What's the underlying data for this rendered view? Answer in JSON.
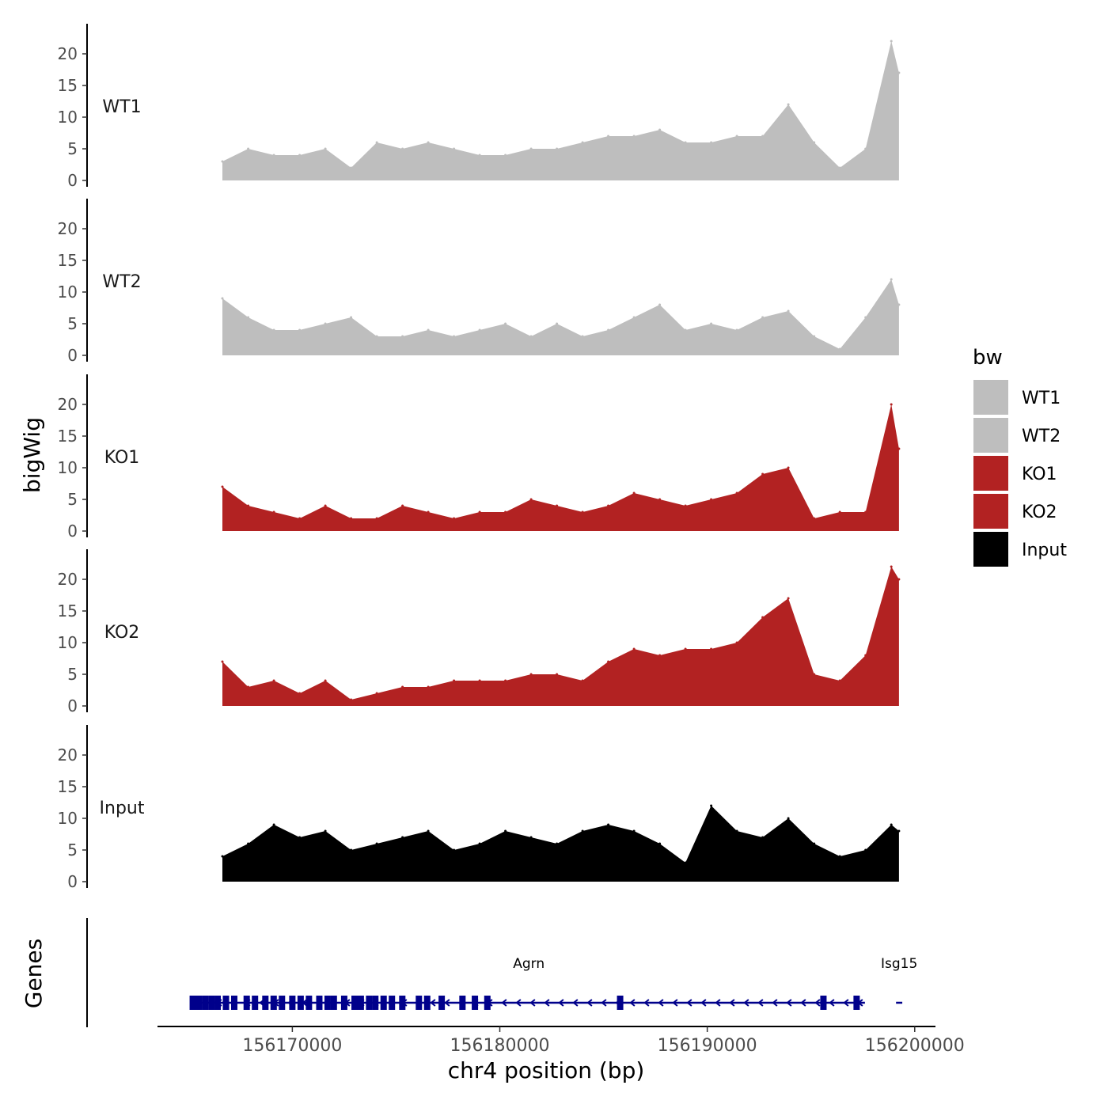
{
  "chart_data": {
    "type": "area",
    "title": "",
    "ylabel": "bigWig",
    "xlabel": "chr4 position (bp)",
    "xlim": [
      156163500,
      156201000
    ],
    "ylim": [
      0,
      25
    ],
    "y_ticks": [
      0,
      5,
      10,
      15,
      20
    ],
    "x_ticks": [
      156170000,
      156180000,
      156190000,
      156200000
    ],
    "x_tick_labels": [
      "156170000",
      "156180000",
      "156190000",
      "156200000"
    ],
    "legend": {
      "title": "bw",
      "placement": "right",
      "entries": [
        {
          "label": "WT1",
          "color": "#BEBEBE"
        },
        {
          "label": "WT2",
          "color": "#BEBEBE"
        },
        {
          "label": "KO1",
          "color": "#B22222"
        },
        {
          "label": "KO2",
          "color": "#B22222"
        },
        {
          "label": "Input",
          "color": "#000000"
        }
      ]
    },
    "series": [
      {
        "name": "WT1",
        "color": "#BEBEBE",
        "x": [
          156166630,
          156167870,
          156169110,
          156170350,
          156171590,
          156172830,
          156174070,
          156175310,
          156176550,
          156177790,
          156179030,
          156180270,
          156181510,
          156182750,
          156183990,
          156185230,
          156186470,
          156187710,
          156188950,
          156190190,
          156191430,
          156192670,
          156193910,
          156195150,
          156196390,
          156197630,
          156198870,
          156199240
        ],
        "values": [
          3,
          5,
          4,
          4,
          5,
          2,
          6,
          5,
          6,
          5,
          4,
          4,
          5,
          5,
          6,
          7,
          7,
          8,
          6,
          6,
          7,
          7,
          12,
          6,
          2,
          5,
          22,
          17
        ]
      },
      {
        "name": "WT2",
        "color": "#BEBEBE",
        "x": [
          156166630,
          156167870,
          156169110,
          156170350,
          156171590,
          156172830,
          156174070,
          156175310,
          156176550,
          156177790,
          156179030,
          156180270,
          156181510,
          156182750,
          156183990,
          156185230,
          156186470,
          156187710,
          156188950,
          156190190,
          156191430,
          156192670,
          156193910,
          156195150,
          156196390,
          156197630,
          156198870,
          156199240
        ],
        "values": [
          9,
          6,
          4,
          4,
          5,
          6,
          3,
          3,
          4,
          3,
          4,
          5,
          3,
          5,
          3,
          4,
          6,
          8,
          4,
          5,
          4,
          6,
          7,
          3,
          1,
          6,
          12,
          8
        ]
      },
      {
        "name": "KO1",
        "color": "#B22222",
        "x": [
          156166630,
          156167870,
          156169110,
          156170350,
          156171590,
          156172830,
          156174070,
          156175310,
          156176550,
          156177790,
          156179030,
          156180270,
          156181510,
          156182750,
          156183990,
          156185230,
          156186470,
          156187710,
          156188950,
          156190190,
          156191430,
          156192670,
          156193910,
          156195150,
          156196390,
          156197630,
          156198870,
          156199240
        ],
        "values": [
          7,
          4,
          3,
          2,
          4,
          2,
          2,
          4,
          3,
          2,
          3,
          3,
          5,
          4,
          3,
          4,
          6,
          5,
          4,
          5,
          6,
          9,
          10,
          2,
          3,
          3,
          20,
          13
        ]
      },
      {
        "name": "KO2",
        "color": "#B22222",
        "x": [
          156166630,
          156167870,
          156169110,
          156170350,
          156171590,
          156172830,
          156174070,
          156175310,
          156176550,
          156177790,
          156179030,
          156180270,
          156181510,
          156182750,
          156183990,
          156185230,
          156186470,
          156187710,
          156188950,
          156190190,
          156191430,
          156192670,
          156193910,
          156195150,
          156196390,
          156197630,
          156198870,
          156199240
        ],
        "values": [
          7,
          3,
          4,
          2,
          4,
          1,
          2,
          3,
          3,
          4,
          4,
          4,
          5,
          5,
          4,
          7,
          9,
          8,
          9,
          9,
          10,
          14,
          17,
          5,
          4,
          8,
          22,
          20
        ]
      },
      {
        "name": "Input",
        "color": "#000000",
        "x": [
          156166630,
          156167870,
          156169110,
          156170350,
          156171590,
          156172830,
          156174070,
          156175310,
          156176550,
          156177790,
          156179030,
          156180270,
          156181510,
          156182750,
          156183990,
          156185230,
          156186470,
          156187710,
          156188950,
          156190190,
          156191430,
          156192670,
          156193910,
          156195150,
          156196390,
          156197630,
          156198870,
          156199240
        ],
        "values": [
          4,
          6,
          9,
          7,
          8,
          5,
          6,
          7,
          8,
          5,
          6,
          8,
          7,
          6,
          8,
          9,
          8,
          6,
          3,
          12,
          8,
          7,
          10,
          6,
          4,
          5,
          9,
          8
        ]
      }
    ],
    "genes": {
      "label": "Genes",
      "strand": "-",
      "items": [
        {
          "name": "Agrn",
          "start": 156165200,
          "end": 156197600
        },
        {
          "name": "Isg15",
          "start": 156199100,
          "end": 156199400
        }
      ],
      "exons_Agrn": [
        156165200,
        156165500,
        156165800,
        156166100,
        156166400,
        156166800,
        156167200,
        156167800,
        156168200,
        156168700,
        156169100,
        156169500,
        156170000,
        156170400,
        156170800,
        156171300,
        156171700,
        156172000,
        156172500,
        156173000,
        156173300,
        156173700,
        156174000,
        156174400,
        156174800,
        156175300,
        156176100,
        156176500,
        156177200,
        156178200,
        156178800,
        156179400,
        156185800,
        156195600,
        156197200
      ]
    }
  }
}
